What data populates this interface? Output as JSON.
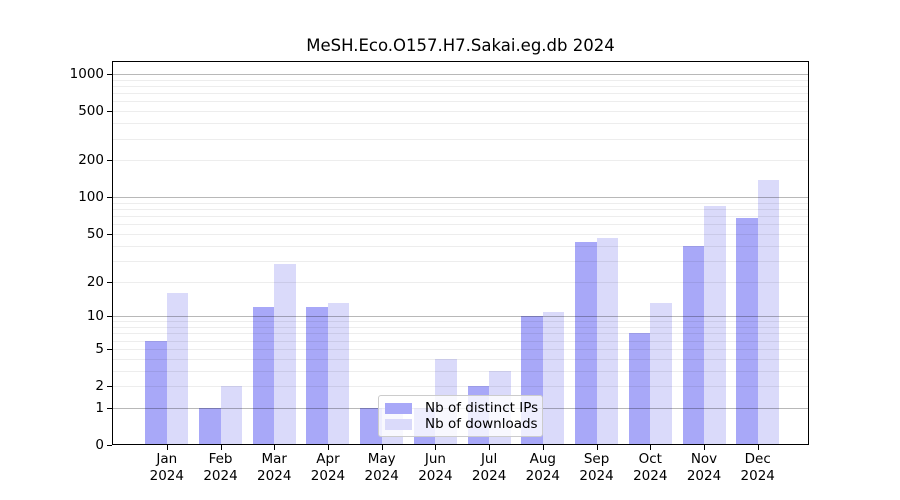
{
  "title": "MeSH.Eco.O157.H7.Sakai.eg.db 2024",
  "legend": {
    "items": [
      {
        "label": "Nb of distinct IPs",
        "color": "#a8a8f8"
      },
      {
        "label": "Nb of downloads",
        "color": "#dadafa"
      }
    ]
  },
  "colors": {
    "bar_ips": "#a8a8f8",
    "bar_downloads": "#dadafa",
    "grid_major": "rgba(0,0,0,0.28)",
    "grid_minor": "rgba(0,0,0,0.07)",
    "axis": "#000000",
    "legend_border": "#cccccc"
  },
  "chart_data": {
    "type": "bar",
    "title": "MeSH.Eco.O157.H7.Sakai.eg.db 2024",
    "categories": [
      "Jan\n2024",
      "Feb\n2024",
      "Mar\n2024",
      "Apr\n2024",
      "May\n2024",
      "Jun\n2024",
      "Jul\n2024",
      "Aug\n2024",
      "Sep\n2024",
      "Oct\n2024",
      "Nov\n2024",
      "Dec\n2024"
    ],
    "series": [
      {
        "name": "Nb of distinct IPs",
        "color": "#a8a8f8",
        "values": [
          6,
          1,
          12,
          12,
          1,
          1,
          2,
          10,
          43,
          7,
          40,
          68
        ]
      },
      {
        "name": "Nb of downloads",
        "color": "#dadafa",
        "values": [
          16,
          2,
          28,
          13,
          1,
          4,
          3,
          11,
          46,
          13,
          84,
          138
        ]
      }
    ],
    "xlabel": "",
    "ylabel": "",
    "yscale": "log1p",
    "ylim": [
      0,
      1250
    ],
    "yticks": [
      0,
      1,
      2,
      5,
      10,
      20,
      50,
      100,
      200,
      500,
      1000
    ],
    "major_gridlines": [
      1,
      10,
      100,
      1000
    ],
    "minor_gridlines": [
      2,
      3,
      4,
      5,
      6,
      7,
      8,
      9,
      20,
      30,
      40,
      50,
      60,
      70,
      80,
      90,
      200,
      300,
      400,
      500,
      600,
      700,
      800,
      900
    ],
    "grid": "on",
    "legend_position": "inside lower-center"
  }
}
